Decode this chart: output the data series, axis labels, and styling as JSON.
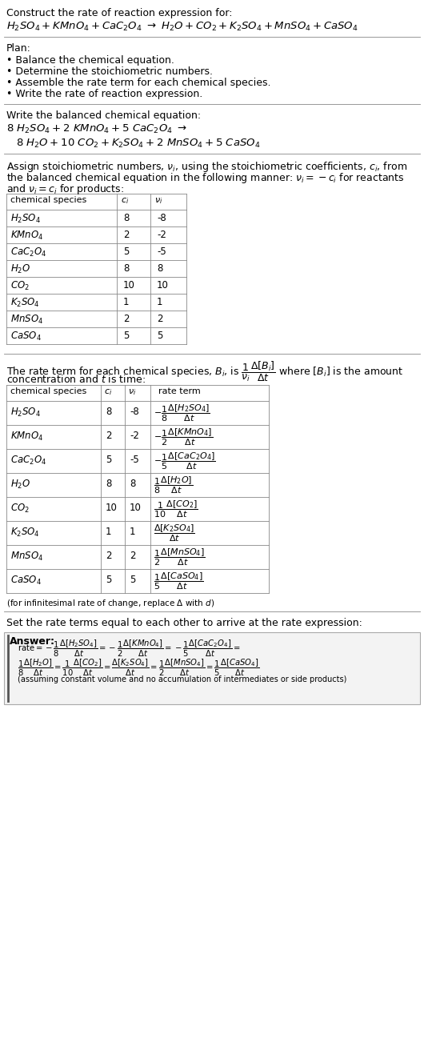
{
  "bg_color": "#ffffff",
  "table1_rows": [
    [
      "H_2SO_4",
      "8",
      "-8"
    ],
    [
      "KMnO_4",
      "2",
      "-2"
    ],
    [
      "CaC_2O_4",
      "5",
      "-5"
    ],
    [
      "H_2O",
      "8",
      "8"
    ],
    [
      "CO_2",
      "10",
      "10"
    ],
    [
      "K_2SO_4",
      "1",
      "1"
    ],
    [
      "MnSO_4",
      "2",
      "2"
    ],
    [
      "CaSO_4",
      "5",
      "5"
    ]
  ],
  "table2_rows": [
    [
      "H_2SO_4",
      "8",
      "-8"
    ],
    [
      "KMnO_4",
      "2",
      "-2"
    ],
    [
      "CaC_2O_4",
      "5",
      "-5"
    ],
    [
      "H_2O",
      "8",
      "8"
    ],
    [
      "CO_2",
      "10",
      "10"
    ],
    [
      "K_2SO_4",
      "1",
      "1"
    ],
    [
      "MnSO_4",
      "2",
      "2"
    ],
    [
      "CaSO_4",
      "5",
      "5"
    ]
  ]
}
